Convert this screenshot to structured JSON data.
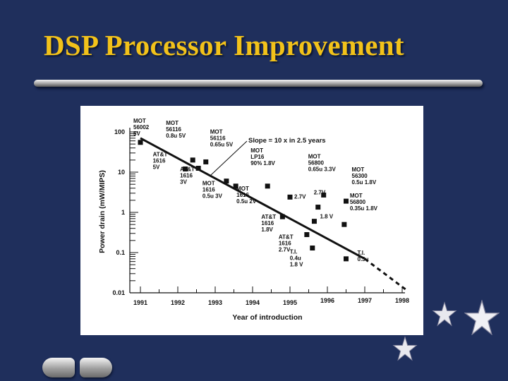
{
  "slide": {
    "title": "DSP Processor Improvement"
  },
  "colors": {
    "background": "#1f2f5c",
    "title": "#f2c21a",
    "chart_ink": "#111111"
  },
  "chart_data": {
    "type": "scatter",
    "xlabel": "Year of introduction",
    "ylabel": "Power drain (mW/MIPS)",
    "x_ticks": [
      "1991",
      "1992",
      "1993",
      "1994",
      "1995",
      "1996",
      "1997",
      "1998"
    ],
    "y_ticks": [
      "100",
      "10",
      "1",
      "0.1",
      "0.01"
    ],
    "xlim": [
      1991,
      1998
    ],
    "ylim": [
      0.01,
      100
    ],
    "y_scale": "log",
    "trend": {
      "label": "Slope = 10 x in 2.5 years",
      "start": [
        1991,
        70
      ],
      "solid_end": [
        1997,
        0.07
      ],
      "end": [
        1998.1,
        0.012
      ]
    },
    "points": [
      {
        "x": 1991.0,
        "y": 55,
        "label": [
          "MOT",
          "56002",
          "5V"
        ]
      },
      {
        "x": 1992.4,
        "y": 20,
        "label": [
          "MOT",
          "56116",
          "0.8u 5V"
        ]
      },
      {
        "x": 1992.75,
        "y": 18,
        "label": [
          "MOT",
          "56116",
          "0.65u 5V"
        ]
      },
      {
        "x": 1992.2,
        "y": 12,
        "label": [
          "AT&T",
          "1616",
          "5V"
        ]
      },
      {
        "x": 1992.55,
        "y": 12.5,
        "label": [
          "AT&T",
          "1616",
          "3V"
        ]
      },
      {
        "x": 1993.3,
        "y": 6,
        "label": [
          "MOT",
          "1616",
          "0.5u 3V"
        ]
      },
      {
        "x": 1993.55,
        "y": 4.5,
        "label": [
          "MOT",
          "1616",
          "0.5u 2V"
        ]
      },
      {
        "x": 1994.4,
        "y": 4.5,
        "label": [
          "MOT",
          "LP16",
          "90% 1.8V"
        ]
      },
      {
        "x": 1995.0,
        "y": 2.4,
        "label": [
          "2.7V"
        ]
      },
      {
        "x": 1995.75,
        "y": 1.35,
        "label": [
          "2.7V"
        ]
      },
      {
        "x": 1995.9,
        "y": 2.7,
        "label": [
          "MOT",
          "56800",
          "0.65u 3.3V"
        ]
      },
      {
        "x": 1996.5,
        "y": 1.9,
        "label": [
          "MOT",
          "56300",
          "0.5u 1.8V"
        ]
      },
      {
        "x": 1994.8,
        "y": 0.78,
        "label": [
          "AT&T",
          "1616",
          "1.8V"
        ]
      },
      {
        "x": 1995.65,
        "y": 0.6,
        "label": [
          "1.8 V"
        ]
      },
      {
        "x": 1996.45,
        "y": 0.5,
        "label": [
          "MOT",
          "56800",
          "0.35u 1.8V"
        ]
      },
      {
        "x": 1995.45,
        "y": 0.28,
        "label": [
          "AT&T",
          "1616",
          "2.7V"
        ]
      },
      {
        "x": 1995.6,
        "y": 0.13,
        "label": [
          "T.I.",
          "0.4u",
          "1.8 V"
        ]
      },
      {
        "x": 1996.5,
        "y": 0.07,
        "label": [
          "T.I.",
          "0.3u"
        ]
      }
    ]
  }
}
